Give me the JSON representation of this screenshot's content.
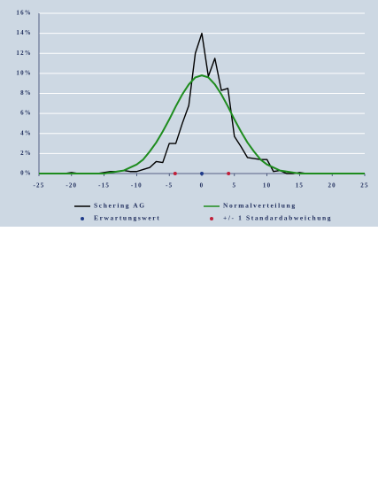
{
  "chart_data": {
    "type": "line",
    "x": [
      -25,
      -24,
      -23,
      -22,
      -21,
      -20,
      -19,
      -18,
      -17,
      -16,
      -15,
      -14,
      -13,
      -12,
      -11,
      -10,
      -9,
      -8,
      -7,
      -6,
      -5,
      -4,
      -3,
      -2,
      -1,
      0,
      1,
      2,
      3,
      4,
      5,
      6,
      7,
      8,
      9,
      10,
      11,
      12,
      13,
      14,
      15,
      16,
      17,
      18,
      19,
      20,
      21,
      22,
      23,
      24,
      25
    ],
    "series": [
      {
        "name": "Schering AG",
        "color": "#000000",
        "style": "line",
        "values": [
          0,
          0,
          0,
          0,
          0,
          0.1,
          0,
          0,
          0,
          0,
          0.1,
          0.2,
          0.2,
          0.3,
          0.2,
          0.2,
          0.4,
          0.6,
          1.2,
          1.1,
          3.0,
          3.0,
          5.0,
          6.8,
          12.0,
          14.0,
          9.7,
          11.5,
          8.3,
          8.5,
          3.7,
          2.7,
          1.6,
          1.5,
          1.4,
          1.4,
          0.2,
          0.3,
          0,
          0,
          0.1,
          0,
          0,
          0,
          0,
          0,
          0,
          0,
          0,
          0,
          0
        ]
      },
      {
        "name": "Normalverteilung",
        "color": "#1e8c1e",
        "style": "line",
        "values": [
          0,
          0,
          0,
          0,
          0,
          0,
          0,
          0,
          0,
          0,
          0,
          0.1,
          0.2,
          0.3,
          0.6,
          0.9,
          1.4,
          2.2,
          3.1,
          4.2,
          5.4,
          6.7,
          7.9,
          8.9,
          9.6,
          9.8,
          9.6,
          8.9,
          7.9,
          6.7,
          5.4,
          4.2,
          3.1,
          2.2,
          1.4,
          0.9,
          0.6,
          0.3,
          0.2,
          0.1,
          0,
          0,
          0,
          0,
          0,
          0,
          0,
          0,
          0,
          0,
          0
        ]
      },
      {
        "name": "Erwartungswert",
        "color": "#1f3a8a",
        "style": "marker",
        "x": [
          0
        ],
        "values": [
          0
        ]
      },
      {
        "name": "+/- 1 Standardabweichung",
        "color": "#c0203a",
        "style": "marker",
        "x": [
          -4.1,
          4.1
        ],
        "values": [
          0,
          0
        ]
      }
    ],
    "xlim": [
      -25,
      25
    ],
    "xticks": [
      -25,
      -20,
      -15,
      -10,
      -5,
      0,
      5,
      10,
      15,
      20,
      25
    ],
    "ylim": [
      0,
      16
    ],
    "yticks": [
      {
        "value": 0,
        "label": "0%"
      },
      {
        "value": 2,
        "label": "2%"
      },
      {
        "value": 4,
        "label": "4%"
      },
      {
        "value": 6,
        "label": "6%"
      },
      {
        "value": 8,
        "label": "8%"
      },
      {
        "value": 10,
        "label": "10%"
      },
      {
        "value": 12,
        "label": "12%"
      },
      {
        "value": 14,
        "label": "14%"
      },
      {
        "value": 16,
        "label": "16%"
      }
    ],
    "grid": true
  }
}
